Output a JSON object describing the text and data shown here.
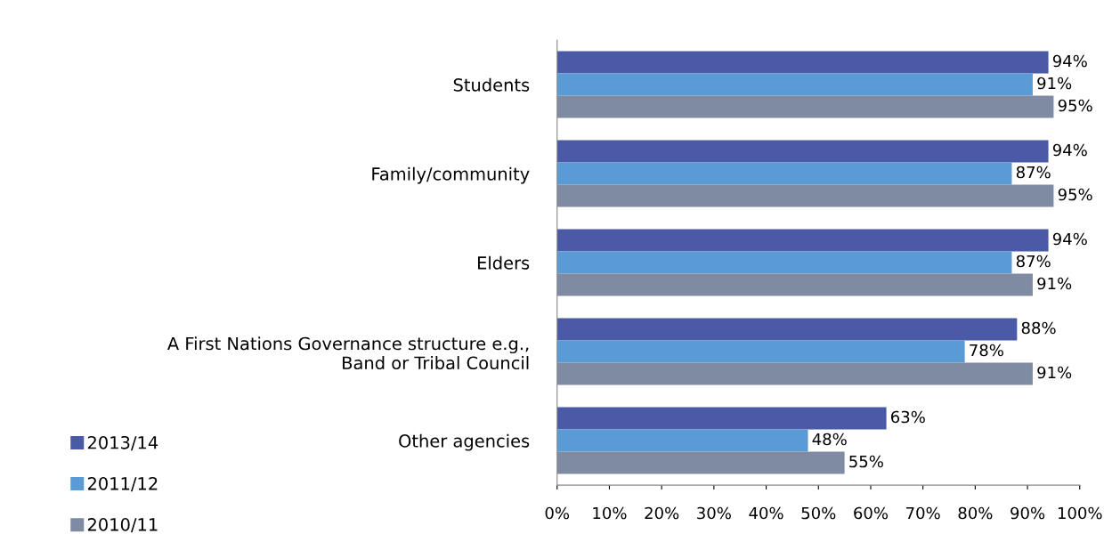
{
  "chart_data": {
    "type": "bar",
    "orientation": "horizontal",
    "categories": [
      "Students",
      "Family/community",
      "Elders",
      "A First Nations Governance structure e.g.,\nBand or Tribal Council",
      "Other agencies"
    ],
    "series": [
      {
        "name": "2013/14",
        "color": "#4a5aa6",
        "values": [
          94,
          94,
          94,
          88,
          63
        ],
        "value_labels": [
          "94%",
          "94%",
          "94%",
          "88%",
          "63%"
        ]
      },
      {
        "name": "2011/12",
        "color": "#5b9bd5",
        "values": [
          91,
          87,
          87,
          78,
          48
        ],
        "value_labels": [
          "91%",
          "87%",
          "87%",
          "78%",
          "48%"
        ]
      },
      {
        "name": "2010/11",
        "color": "#7f8ba3",
        "values": [
          95,
          95,
          91,
          91,
          55
        ],
        "value_labels": [
          "95%",
          "95%",
          "91%",
          "91%",
          "55%"
        ]
      }
    ],
    "xlim": [
      0,
      100
    ],
    "xticks": [
      {
        "value": 0,
        "label": "0%"
      },
      {
        "value": 10,
        "label": "10%"
      },
      {
        "value": 20,
        "label": "20%"
      },
      {
        "value": 30,
        "label": "30%"
      },
      {
        "value": 40,
        "label": "40%"
      },
      {
        "value": 50,
        "label": "50%"
      },
      {
        "value": 60,
        "label": "60%"
      },
      {
        "value": 70,
        "label": "70%"
      },
      {
        "value": 80,
        "label": "80%"
      },
      {
        "value": 90,
        "label": "90%"
      },
      {
        "value": 100,
        "label": "100%"
      }
    ],
    "grid": false,
    "legend": "bottom left"
  }
}
